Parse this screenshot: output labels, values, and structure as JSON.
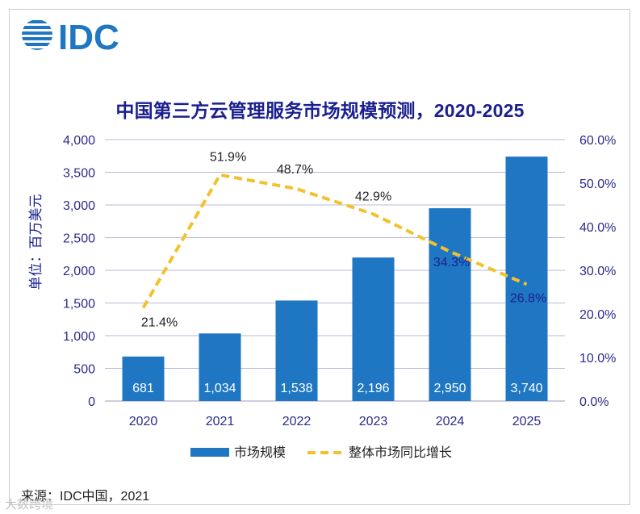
{
  "logo_text": "IDC",
  "chart_data": {
    "type": "bar",
    "title": "中国第三方云管理服务市场规模预测，2020-2025",
    "categories": [
      "2020",
      "2021",
      "2022",
      "2023",
      "2024",
      "2025"
    ],
    "series": [
      {
        "name": "市场规模",
        "type": "bar",
        "axis": "left",
        "values": [
          681,
          1034,
          1538,
          2196,
          2950,
          3740
        ],
        "labels": [
          "681",
          "1,034",
          "1,538",
          "2,196",
          "2,950",
          "3,740"
        ]
      },
      {
        "name": "整体市场同比增长",
        "type": "line",
        "axis": "right",
        "values": [
          21.4,
          51.9,
          48.7,
          42.9,
          34.3,
          26.8
        ],
        "labels": [
          "21.4%",
          "51.9%",
          "48.7%",
          "42.9%",
          "34.3%",
          "26.8%"
        ]
      }
    ],
    "ylabel": "单位：百万美元",
    "ylim": [
      0,
      4000
    ],
    "y_ticks": [
      "0",
      "500",
      "1,000",
      "1,500",
      "2,000",
      "2,500",
      "3,000",
      "3,500",
      "4,000"
    ],
    "y2lim": [
      0,
      60
    ],
    "y2_ticks": [
      "0.0%",
      "10.0%",
      "20.0%",
      "30.0%",
      "40.0%",
      "50.0%",
      "60.0%"
    ],
    "grid": true,
    "legend_position": "bottom",
    "colors": {
      "bar": "#1f77c4",
      "line": "#f2c12e",
      "axis_text": "#2b2b8c",
      "grid": "#b8bbd8"
    }
  },
  "source": "来源：IDC中国，2021",
  "watermark": "大数跨境"
}
